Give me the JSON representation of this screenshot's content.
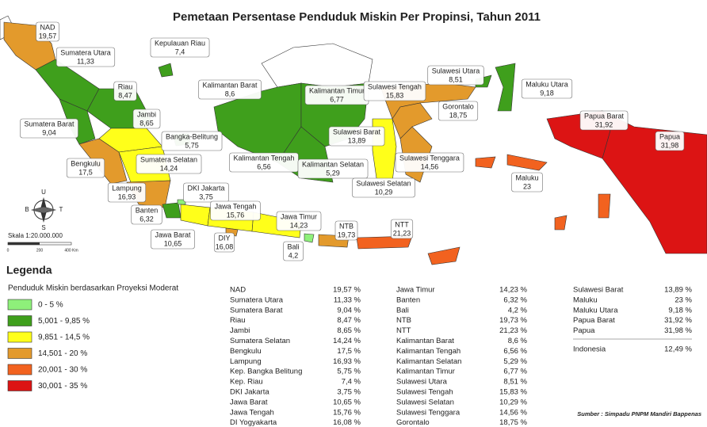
{
  "header": {
    "title": "Pemetaan Persentase Penduduk Miskin Per Propinsi, Tahun 2011"
  },
  "map_labels": [
    {
      "name": "NAD",
      "value": "19,57"
    },
    {
      "name": "Sumatera Utara",
      "value": "11,33"
    },
    {
      "name": "Kepulauan Riau",
      "value": "7,4"
    },
    {
      "name": "Riau",
      "value": "8,47"
    },
    {
      "name": "Jambi",
      "value": "8,65"
    },
    {
      "name": "Sumatera Barat",
      "value": "9,04"
    },
    {
      "name": "Bangka-Belitung",
      "value": "5,75"
    },
    {
      "name": "Kalimantan Barat",
      "value": "8,6"
    },
    {
      "name": "Kalimantan Timur",
      "value": "6,77"
    },
    {
      "name": "Sulawesi Tengah",
      "value": "15,83"
    },
    {
      "name": "Sulawesi Utara",
      "value": "8,51"
    },
    {
      "name": "Gorontalo",
      "value": "18,75"
    },
    {
      "name": "Maluku Utara",
      "value": "9,18"
    },
    {
      "name": "Papua Barat",
      "value": "31,92"
    },
    {
      "name": "Papua",
      "value": "31,98"
    },
    {
      "name": "Sulawesi Barat",
      "value": "13,89"
    },
    {
      "name": "Sulawesi Tenggara",
      "value": "14,56"
    },
    {
      "name": "Maluku",
      "value": "23"
    },
    {
      "name": "Bengkulu",
      "value": "17,5"
    },
    {
      "name": "Sumatera Selatan",
      "value": "14,24"
    },
    {
      "name": "Kalimantan Tengah",
      "value": "6,56"
    },
    {
      "name": "Kalimantan Selatan",
      "value": "5,29"
    },
    {
      "name": "Sulawesi Selatan",
      "value": "10,29"
    },
    {
      "name": "Lampung",
      "value": "16,93"
    },
    {
      "name": "DKI Jakarta",
      "value": "3,75"
    },
    {
      "name": "Banten",
      "value": "6,32"
    },
    {
      "name": "Jawa Tengah",
      "value": "15,76"
    },
    {
      "name": "Jawa Timur",
      "value": "14,23"
    },
    {
      "name": "NTB",
      "value": "19,73"
    },
    {
      "name": "NTT",
      "value": "21,23"
    },
    {
      "name": "Jawa Barat",
      "value": "10,65"
    },
    {
      "name": "DIY",
      "value": "16,08"
    },
    {
      "name": "Bali",
      "value": "4,2"
    }
  ],
  "compass": {
    "north": "U",
    "south": "S",
    "west": "B",
    "east": "T"
  },
  "scale": {
    "label": "Skala 1:20.000.000",
    "ticks": [
      "0",
      "200",
      "400 Km"
    ]
  },
  "legend": {
    "title": "Legenda",
    "subtitle": "Penduduk Miskin berdasarkan Proyeksi Moderat",
    "items": [
      {
        "label": "0 - 5 %",
        "color": "#8ef07a"
      },
      {
        "label": "5,001 - 9,85 %",
        "color": "#3f9f1c"
      },
      {
        "label": "9,851 - 14,5 %",
        "color": "#ffff1a"
      },
      {
        "label": "14,501 - 20 %",
        "color": "#e39a2c"
      },
      {
        "label": "20,001 - 30 %",
        "color": "#f2621f"
      },
      {
        "label": "30,001 - 35 %",
        "color": "#dc1414"
      }
    ]
  },
  "table": {
    "columns": [
      [
        [
          "NAD",
          "19,57 %"
        ],
        [
          "Sumatera Utara",
          "11,33 %"
        ],
        [
          "Sumatera Barat",
          "9,04 %"
        ],
        [
          "Riau",
          "8,47 %"
        ],
        [
          "Jambi",
          "8,65 %"
        ],
        [
          "Sumatera Selatan",
          "14,24 %"
        ],
        [
          "Bengkulu",
          "17,5 %"
        ],
        [
          "Lampung",
          "16,93 %"
        ],
        [
          "Kep. Bangka Belitung",
          "5,75 %"
        ],
        [
          "Kep. Riau",
          "7,4 %"
        ],
        [
          "DKI Jakarta",
          "3,75 %"
        ],
        [
          "Jawa Barat",
          "10,65 %"
        ],
        [
          "Jawa Tengah",
          "15,76 %"
        ],
        [
          "DI Yogyakarta",
          "16,08 %"
        ]
      ],
      [
        [
          "Jawa Timur",
          "14,23 %"
        ],
        [
          "Banten",
          "6,32 %"
        ],
        [
          "Bali",
          "4,2 %"
        ],
        [
          "NTB",
          "19,73 %"
        ],
        [
          "NTT",
          "21,23 %"
        ],
        [
          "Kalimantan Barat",
          "8,6 %"
        ],
        [
          "Kalimantan Tengah",
          "6,56 %"
        ],
        [
          "Kalimantan Selatan",
          "5,29 %"
        ],
        [
          "Kalimantan Timur",
          "6,77 %"
        ],
        [
          "Sulawesi Utara",
          "8,51 %"
        ],
        [
          "Sulawesi Tengah",
          "15,83 %"
        ],
        [
          "Sulawesi Selatan",
          "10,29 %"
        ],
        [
          "Sulawesi Tenggara",
          "14,56 %"
        ],
        [
          "Gorontalo",
          "18,75 %"
        ]
      ],
      [
        [
          "Sulawesi Barat",
          "13,89 %"
        ],
        [
          "Maluku",
          "23 %"
        ],
        [
          "Maluku Utara",
          "9,18 %"
        ],
        [
          "Papua Barat",
          "31,92 %"
        ],
        [
          "Papua",
          "31,98 %"
        ]
      ]
    ],
    "total": [
      "Indonesia",
      "12,49 %"
    ]
  },
  "source": "Sumber : Simpadu PNPM Mandiri Bappenas"
}
